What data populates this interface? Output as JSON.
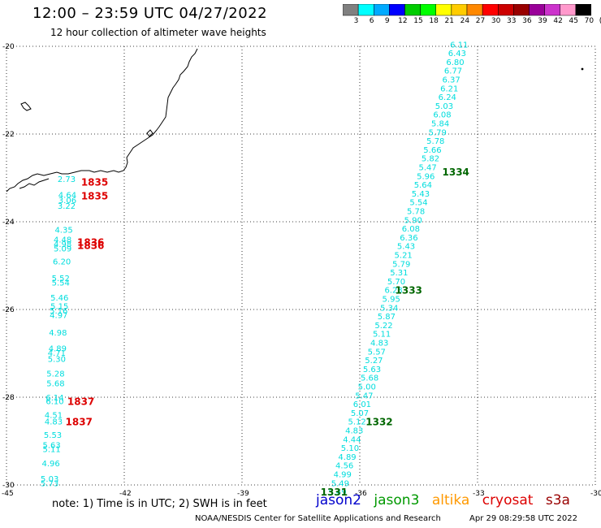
{
  "header": {
    "title": "12:00 – 23:59 UTC 04/27/2022",
    "subtitle": "12 hour collection of altimeter wave heights"
  },
  "color_scale": {
    "colors": [
      "#808080",
      "#00ffff",
      "#00aaff",
      "#0000ff",
      "#00cc00",
      "#00ff00",
      "#ffff00",
      "#ffcc00",
      "#ff8800",
      "#ff0000",
      "#cc0000",
      "#990000",
      "#990099",
      "#cc33cc",
      "#ff99cc",
      "#000000"
    ],
    "labels": [
      "3",
      "6",
      "9",
      "12",
      "15",
      "18",
      "21",
      "24",
      "27",
      "30",
      "33",
      "36",
      "39",
      "42",
      "45",
      "70",
      "(ft)"
    ]
  },
  "map": {
    "lat_ticks": [
      "-20",
      "-22",
      "-24",
      "-26",
      "-28",
      "-30"
    ],
    "lon_ticks": [
      "-45",
      "-42",
      "-39",
      "-36",
      "-33",
      "-30"
    ],
    "west_track": {
      "color": "#00dddd",
      "points": [
        {
          "lon": -43.7,
          "lat": -23.02,
          "v": "2.73"
        },
        {
          "lon": -43.68,
          "lat": -23.38,
          "v": "4.64"
        },
        {
          "lon": -43.68,
          "lat": -23.5,
          "v": "3.06"
        },
        {
          "lon": -43.7,
          "lat": -23.63,
          "v": "3.22"
        },
        {
          "lon": -43.77,
          "lat": -24.18,
          "v": "4.35"
        },
        {
          "lon": -43.8,
          "lat": -24.4,
          "v": "4.48"
        },
        {
          "lon": -43.8,
          "lat": -24.5,
          "v": "4.98"
        },
        {
          "lon": -43.8,
          "lat": -24.6,
          "v": "5.09"
        },
        {
          "lon": -43.82,
          "lat": -24.9,
          "v": "6.20"
        },
        {
          "lon": -43.85,
          "lat": -25.28,
          "v": "5.52"
        },
        {
          "lon": -43.85,
          "lat": -25.38,
          "v": "5.54"
        },
        {
          "lon": -43.88,
          "lat": -25.72,
          "v": "5.46"
        },
        {
          "lon": -43.88,
          "lat": -25.92,
          "v": "5.15"
        },
        {
          "lon": -43.9,
          "lat": -26.02,
          "v": "5.16"
        },
        {
          "lon": -43.9,
          "lat": -26.12,
          "v": "4.97"
        },
        {
          "lon": -43.92,
          "lat": -26.52,
          "v": "4.98"
        },
        {
          "lon": -43.93,
          "lat": -26.88,
          "v": "4.89"
        },
        {
          "lon": -43.95,
          "lat": -26.98,
          "v": "4.71"
        },
        {
          "lon": -43.95,
          "lat": -27.12,
          "v": "5.30"
        },
        {
          "lon": -43.98,
          "lat": -27.45,
          "v": "5.28"
        },
        {
          "lon": -43.98,
          "lat": -27.68,
          "v": "5.68"
        },
        {
          "lon": -44.0,
          "lat": -28.0,
          "v": "6.14"
        },
        {
          "lon": -44.0,
          "lat": -28.08,
          "v": "6.10"
        },
        {
          "lon": -44.03,
          "lat": -28.4,
          "v": "4.51"
        },
        {
          "lon": -44.03,
          "lat": -28.55,
          "v": "4.83"
        },
        {
          "lon": -44.05,
          "lat": -28.85,
          "v": "5.53"
        },
        {
          "lon": -44.08,
          "lat": -29.08,
          "v": "5.63"
        },
        {
          "lon": -44.08,
          "lat": -29.18,
          "v": "5.11"
        },
        {
          "lon": -44.1,
          "lat": -29.5,
          "v": "4.96"
        },
        {
          "lon": -44.13,
          "lat": -29.85,
          "v": "5.03"
        },
        {
          "lon": -44.13,
          "lat": -29.95,
          "v": "5.73"
        }
      ]
    },
    "east_track": {
      "color": "#00dddd",
      "points": [
        {
          "lon": -33.7,
          "lat": -19.95,
          "v": "6.11"
        },
        {
          "lon": -33.75,
          "lat": -20.15,
          "v": "6.43"
        },
        {
          "lon": -33.8,
          "lat": -20.35,
          "v": "6.80"
        },
        {
          "lon": -33.85,
          "lat": -20.55,
          "v": "6.77"
        },
        {
          "lon": -33.9,
          "lat": -20.75,
          "v": "6.37"
        },
        {
          "lon": -33.95,
          "lat": -20.95,
          "v": "6.21"
        },
        {
          "lon": -34.0,
          "lat": -21.15,
          "v": "6.24"
        },
        {
          "lon": -34.08,
          "lat": -21.35,
          "v": "5.03"
        },
        {
          "lon": -34.13,
          "lat": -21.55,
          "v": "6.08"
        },
        {
          "lon": -34.18,
          "lat": -21.75,
          "v": "5.84"
        },
        {
          "lon": -34.25,
          "lat": -21.95,
          "v": "5.79"
        },
        {
          "lon": -34.3,
          "lat": -22.15,
          "v": "5.78"
        },
        {
          "lon": -34.38,
          "lat": -22.35,
          "v": "5.66"
        },
        {
          "lon": -34.43,
          "lat": -22.55,
          "v": "5.82"
        },
        {
          "lon": -34.5,
          "lat": -22.75,
          "v": "5.47"
        },
        {
          "lon": -34.55,
          "lat": -22.95,
          "v": "5.96"
        },
        {
          "lon": -34.62,
          "lat": -23.15,
          "v": "5.64"
        },
        {
          "lon": -34.68,
          "lat": -23.35,
          "v": "5.43"
        },
        {
          "lon": -34.73,
          "lat": -23.55,
          "v": "5.54"
        },
        {
          "lon": -34.8,
          "lat": -23.75,
          "v": "5.78"
        },
        {
          "lon": -34.87,
          "lat": -23.95,
          "v": "5.90"
        },
        {
          "lon": -34.93,
          "lat": -24.15,
          "v": "6.08"
        },
        {
          "lon": -34.98,
          "lat": -24.35,
          "v": "6.36"
        },
        {
          "lon": -35.05,
          "lat": -24.55,
          "v": "5.43"
        },
        {
          "lon": -35.12,
          "lat": -24.75,
          "v": "5.21"
        },
        {
          "lon": -35.17,
          "lat": -24.95,
          "v": "5.79"
        },
        {
          "lon": -35.23,
          "lat": -25.15,
          "v": "5.31"
        },
        {
          "lon": -35.3,
          "lat": -25.35,
          "v": "5.70"
        },
        {
          "lon": -35.37,
          "lat": -25.55,
          "v": "6.23"
        },
        {
          "lon": -35.43,
          "lat": -25.75,
          "v": "5.95"
        },
        {
          "lon": -35.48,
          "lat": -25.95,
          "v": "5.34"
        },
        {
          "lon": -35.55,
          "lat": -26.15,
          "v": "5.87"
        },
        {
          "lon": -35.62,
          "lat": -26.35,
          "v": "5.22"
        },
        {
          "lon": -35.67,
          "lat": -26.55,
          "v": "5.11"
        },
        {
          "lon": -35.73,
          "lat": -26.75,
          "v": "4.83"
        },
        {
          "lon": -35.8,
          "lat": -26.95,
          "v": "5.57"
        },
        {
          "lon": -35.87,
          "lat": -27.15,
          "v": "5.27"
        },
        {
          "lon": -35.92,
          "lat": -27.35,
          "v": "5.63"
        },
        {
          "lon": -35.98,
          "lat": -27.55,
          "v": "5.68"
        },
        {
          "lon": -36.05,
          "lat": -27.75,
          "v": "5.00"
        },
        {
          "lon": -36.12,
          "lat": -27.95,
          "v": "5.47"
        },
        {
          "lon": -36.17,
          "lat": -28.15,
          "v": "6.01"
        },
        {
          "lon": -36.23,
          "lat": -28.35,
          "v": "5.07"
        },
        {
          "lon": -36.3,
          "lat": -28.55,
          "v": "5.12"
        },
        {
          "lon": -36.37,
          "lat": -28.75,
          "v": "4.83"
        },
        {
          "lon": -36.43,
          "lat": -28.95,
          "v": "4.44"
        },
        {
          "lon": -36.48,
          "lat": -29.15,
          "v": "5.10"
        },
        {
          "lon": -36.55,
          "lat": -29.35,
          "v": "4.89"
        },
        {
          "lon": -36.62,
          "lat": -29.55,
          "v": "4.56"
        },
        {
          "lon": -36.67,
          "lat": -29.75,
          "v": "4.99"
        },
        {
          "lon": -36.73,
          "lat": -29.95,
          "v": "5.49"
        },
        {
          "lon": -36.8,
          "lat": -30.15,
          "v": "5.49"
        }
      ]
    },
    "time_labels": [
      {
        "lon": -43.1,
        "lat": -23.08,
        "t": "1835",
        "color": "#dd0000"
      },
      {
        "lon": -43.1,
        "lat": -23.4,
        "t": "1835",
        "color": "#dd0000"
      },
      {
        "lon": -43.2,
        "lat": -24.45,
        "t": "1836",
        "color": "#dd0000"
      },
      {
        "lon": -43.2,
        "lat": -24.53,
        "t": "1836",
        "color": "#dd0000"
      },
      {
        "lon": -43.45,
        "lat": -28.08,
        "t": "1837",
        "color": "#dd0000"
      },
      {
        "lon": -43.5,
        "lat": -28.55,
        "t": "1837",
        "color": "#dd0000"
      },
      {
        "lon": -33.9,
        "lat": -22.85,
        "t": "1334",
        "color": "#006600"
      },
      {
        "lon": -35.1,
        "lat": -25.55,
        "t": "1333",
        "color": "#006600"
      },
      {
        "lon": -35.85,
        "lat": -28.55,
        "t": "1332",
        "color": "#006600"
      },
      {
        "lon": -37.0,
        "lat": -30.15,
        "t": "1331",
        "color": "#006600"
      }
    ]
  },
  "footer": {
    "note": "note:  1) Time is in UTC;  2) SWH is in feet",
    "satellites": [
      {
        "name": "jason2",
        "color": "#0000cc"
      },
      {
        "name": "jason3",
        "color": "#009900"
      },
      {
        "name": "altika",
        "color": "#ff9900"
      },
      {
        "name": "cryosat",
        "color": "#dd0000"
      },
      {
        "name": "s3a",
        "color": "#990000"
      }
    ],
    "credit": "NOAA/NESDIS Center for Satellite Applications and Research",
    "timestamp": "Apr 29 08:29:58 UTC 2022"
  }
}
